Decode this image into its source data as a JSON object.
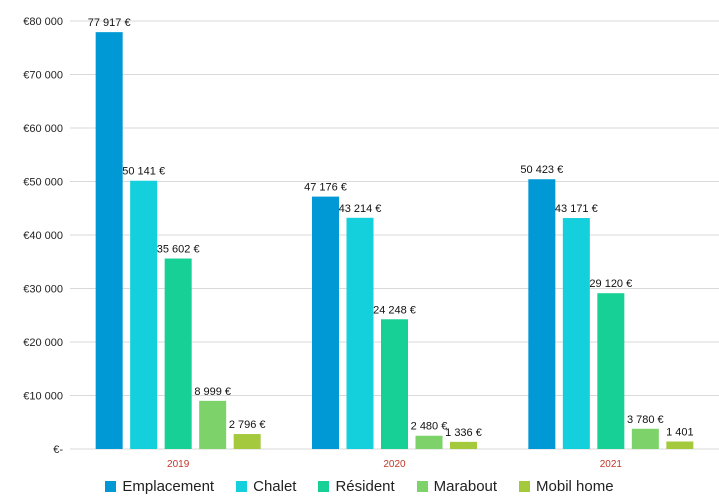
{
  "chart_data": {
    "type": "bar",
    "categories": [
      "2019",
      "2020",
      "2021"
    ],
    "series": [
      {
        "name": "Emplacement",
        "color": "#0099d6",
        "values": [
          77917,
          47176,
          50423
        ],
        "labels": [
          "77 917 €",
          "47 176 €",
          "50 423 €"
        ]
      },
      {
        "name": "Chalet",
        "color": "#14cfdc",
        "values": [
          50141,
          43214,
          43171
        ],
        "labels": [
          "50 141 €",
          "43 214 €",
          "43 171 €"
        ]
      },
      {
        "name": "Résident",
        "color": "#17d095",
        "values": [
          35602,
          24248,
          29120
        ],
        "labels": [
          "35 602 €",
          "24 248 €",
          "29 120 €"
        ]
      },
      {
        "name": "Marabout",
        "color": "#7dd36a",
        "values": [
          8999,
          2480,
          3780
        ],
        "labels": [
          "8 999 €",
          "2 480 €",
          "3 780 €"
        ]
      },
      {
        "name": "Mobil home",
        "color": "#a4c93d",
        "values": [
          2796,
          1336,
          1401
        ],
        "labels": [
          "2 796 €",
          "1 336 €",
          "1 401"
        ]
      }
    ],
    "yticks": [
      0,
      10000,
      20000,
      30000,
      40000,
      50000,
      60000,
      70000,
      80000
    ],
    "ytick_labels": [
      "€-",
      "€10 000",
      "€20 000",
      "€30 000",
      "€40 000",
      "€50 000",
      "€60 000",
      "€70 000",
      "€80 000"
    ],
    "ylim": [
      0,
      80000
    ],
    "grid": true,
    "legend_position": "bottom"
  }
}
